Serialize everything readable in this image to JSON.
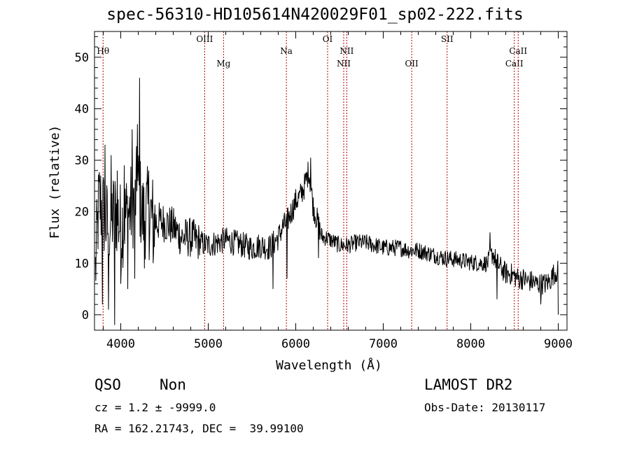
{
  "title": "spec-56310-HD105614N420029F01_sp02-222.fits",
  "chart_data": {
    "type": "line",
    "xlabel": "Wavelength (Å)",
    "ylabel": "Flux (relative)",
    "xlim": [
      3700,
      9100
    ],
    "ylim": [
      -3,
      55
    ],
    "xticks": [
      "4000",
      "5000",
      "6000",
      "7000",
      "8000",
      "9000"
    ],
    "yticks": [
      "0",
      "10",
      "20",
      "30",
      "40",
      "50"
    ],
    "grid": false,
    "series": [
      {
        "x": [
          3700,
          3750,
          3800,
          3850,
          3900,
          3950,
          4000,
          4050,
          4100,
          4150,
          4200,
          4250,
          4300,
          4400,
          4500,
          4600,
          4700,
          4800,
          4900,
          5000,
          5100,
          5200,
          5300,
          5400,
          5500,
          5600,
          5700,
          5800,
          5850,
          5900,
          5950,
          6000,
          6050,
          6100,
          6150,
          6200,
          6250,
          6300,
          6350,
          6400,
          6450,
          6500,
          6600,
          6700,
          6800,
          6900,
          7000,
          7100,
          7200,
          7300,
          7400,
          7500,
          7600,
          7700,
          7800,
          7900,
          8000,
          8100,
          8150,
          8200,
          8250,
          8300,
          8350,
          8400,
          8450,
          8500,
          8550,
          8600,
          8650,
          8700,
          8750,
          8800,
          8850,
          8900,
          8950,
          9000
        ],
        "y": [
          5,
          22,
          20,
          17,
          19,
          20,
          17,
          19,
          20,
          22,
          25,
          19,
          20,
          18,
          18,
          17,
          15,
          15,
          14,
          13.5,
          14,
          14.5,
          14,
          13.5,
          13,
          13.5,
          13,
          15,
          17,
          18,
          20,
          22,
          23,
          25,
          28,
          21,
          18,
          15,
          15,
          14.5,
          14,
          13.5,
          13.5,
          14,
          14,
          13.5,
          13,
          13,
          13,
          12.5,
          12.5,
          12,
          11.5,
          11,
          10.8,
          10.5,
          10.2,
          10,
          10,
          10,
          12,
          10,
          9,
          8,
          8,
          7.5,
          7,
          7,
          6.5,
          6.5,
          6,
          6,
          6,
          6.5,
          8,
          8.5
        ],
        "spikes": [
          {
            "x": 3770,
            "y": 27
          },
          {
            "x": 3790,
            "y": 2
          },
          {
            "x": 3820,
            "y": 33
          },
          {
            "x": 3860,
            "y": 1
          },
          {
            "x": 3890,
            "y": 31
          },
          {
            "x": 3930,
            "y": -2
          },
          {
            "x": 3960,
            "y": 28
          },
          {
            "x": 4000,
            "y": 6
          },
          {
            "x": 4040,
            "y": 29
          },
          {
            "x": 4080,
            "y": 5
          },
          {
            "x": 4130,
            "y": 36
          },
          {
            "x": 4160,
            "y": 7
          },
          {
            "x": 4190,
            "y": 37
          },
          {
            "x": 4215,
            "y": 46
          },
          {
            "x": 4270,
            "y": 9
          },
          {
            "x": 4320,
            "y": 28
          },
          {
            "x": 4370,
            "y": 10
          },
          {
            "x": 5740,
            "y": 5
          },
          {
            "x": 5900,
            "y": 7
          },
          {
            "x": 6170,
            "y": 30.5
          },
          {
            "x": 6260,
            "y": 11
          },
          {
            "x": 8220,
            "y": 16
          },
          {
            "x": 8300,
            "y": 3
          },
          {
            "x": 8800,
            "y": 2
          },
          {
            "x": 9000,
            "y": 0
          }
        ]
      }
    ],
    "lines": [
      {
        "label": "Hθ",
        "x": 3798,
        "row": 1
      },
      {
        "label": "OIII",
        "x": 4959,
        "row": 0
      },
      {
        "label": "Mg",
        "x": 5175,
        "row": 2
      },
      {
        "label": "Na",
        "x": 5893,
        "row": 1
      },
      {
        "label": "OI",
        "x": 6364,
        "row": 0
      },
      {
        "label": "NII",
        "x": 6548,
        "row": 2
      },
      {
        "label": "NII",
        "x": 6583,
        "row": 1
      },
      {
        "label": "OII",
        "x": 7325,
        "row": 2
      },
      {
        "label": "SII",
        "x": 7730,
        "row": 0
      },
      {
        "label": "CaII",
        "x": 8498,
        "row": 2
      },
      {
        "label": "CaII",
        "x": 8542,
        "row": 1
      }
    ]
  },
  "info": {
    "class": "QSO",
    "subclass": "Non",
    "survey": "LAMOST DR2",
    "cz": "cz = 1.2 ± -9999.0",
    "obs_date": "Obs-Date: 20130117",
    "radec": "RA = 162.21743, DEC =  39.99100"
  }
}
